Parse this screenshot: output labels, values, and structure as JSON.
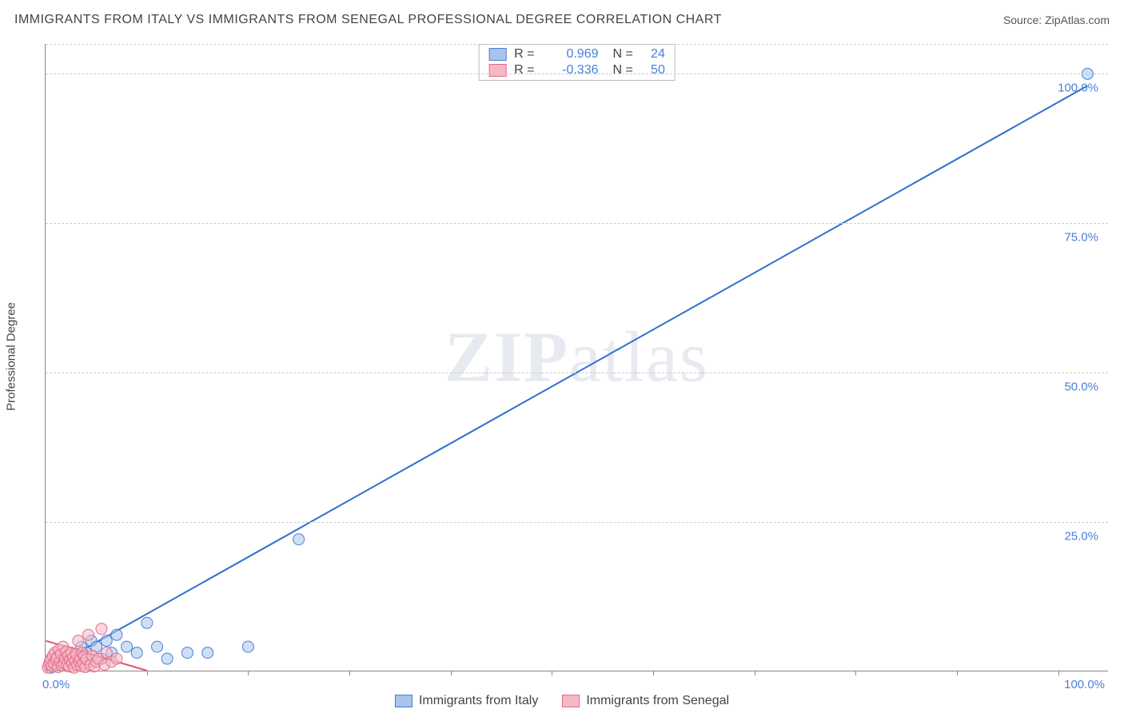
{
  "title": "IMMIGRANTS FROM ITALY VS IMMIGRANTS FROM SENEGAL PROFESSIONAL DEGREE CORRELATION CHART",
  "source": "Source: ZipAtlas.com",
  "ylabel": "Professional Degree",
  "watermark": "ZIPatlas",
  "chart": {
    "type": "scatter",
    "xlim": [
      0,
      105
    ],
    "ylim": [
      0,
      105
    ],
    "x_tick_labels": {
      "min": "0.0%",
      "max": "100.0%"
    },
    "y_tick_labels": [
      "25.0%",
      "50.0%",
      "75.0%",
      "100.0%"
    ],
    "y_tick_values": [
      25,
      50,
      75,
      100
    ],
    "x_minor_ticks": [
      10,
      20,
      30,
      40,
      50,
      60,
      70,
      80,
      90,
      100
    ],
    "background_color": "#ffffff",
    "grid_color": "#cccccc",
    "axis_color": "#888888",
    "label_color": "#4a7fd8",
    "marker_radius": 7,
    "marker_opacity": 0.55,
    "line_width": 2,
    "series": [
      {
        "name": "Immigrants from Italy",
        "color_fill": "#a8c4ea",
        "color_stroke": "#4a7fd8",
        "trend_color": "#2f6fd0",
        "r": "0.969",
        "n": "24",
        "trend": {
          "x1": 0,
          "y1": 0,
          "x2": 103,
          "y2": 98
        },
        "points": [
          [
            0.5,
            0.5
          ],
          [
            1,
            1
          ],
          [
            1.5,
            2
          ],
          [
            2,
            1.5
          ],
          [
            2.5,
            3
          ],
          [
            3,
            2.5
          ],
          [
            3.5,
            4
          ],
          [
            4,
            3
          ],
          [
            4.5,
            5
          ],
          [
            5,
            4
          ],
          [
            5.5,
            2
          ],
          [
            6,
            5
          ],
          [
            6.5,
            3
          ],
          [
            7,
            6
          ],
          [
            8,
            4
          ],
          [
            9,
            3
          ],
          [
            10,
            8
          ],
          [
            11,
            4
          ],
          [
            12,
            2
          ],
          [
            14,
            3
          ],
          [
            16,
            3
          ],
          [
            20,
            4
          ],
          [
            25,
            22
          ],
          [
            103,
            100
          ]
        ]
      },
      {
        "name": "Immigrants from Senegal",
        "color_fill": "#f4b8c4",
        "color_stroke": "#e86a8a",
        "trend_color": "#e05575",
        "r": "-0.336",
        "n": "50",
        "trend": {
          "x1": 0,
          "y1": 5,
          "x2": 10,
          "y2": 0
        },
        "points": [
          [
            0.2,
            0.5
          ],
          [
            0.3,
            1
          ],
          [
            0.4,
            1.5
          ],
          [
            0.5,
            2
          ],
          [
            0.6,
            0.8
          ],
          [
            0.7,
            2.5
          ],
          [
            0.8,
            1.2
          ],
          [
            0.9,
            3
          ],
          [
            1,
            1.8
          ],
          [
            1.1,
            2.2
          ],
          [
            1.2,
            0.6
          ],
          [
            1.3,
            3.5
          ],
          [
            1.4,
            1.5
          ],
          [
            1.5,
            2.8
          ],
          [
            1.6,
            0.9
          ],
          [
            1.7,
            4
          ],
          [
            1.8,
            1.2
          ],
          [
            1.9,
            2
          ],
          [
            2,
            3.2
          ],
          [
            2.1,
            1
          ],
          [
            2.2,
            2.5
          ],
          [
            2.3,
            0.7
          ],
          [
            2.4,
            1.8
          ],
          [
            2.5,
            3
          ],
          [
            2.6,
            1.3
          ],
          [
            2.7,
            2.2
          ],
          [
            2.8,
            0.5
          ],
          [
            2.9,
            1.6
          ],
          [
            3,
            2.8
          ],
          [
            3.1,
            1
          ],
          [
            3.2,
            5
          ],
          [
            3.3,
            1.5
          ],
          [
            3.4,
            2
          ],
          [
            3.5,
            0.8
          ],
          [
            3.6,
            3
          ],
          [
            3.7,
            1.2
          ],
          [
            3.8,
            2.4
          ],
          [
            3.9,
            0.6
          ],
          [
            4,
            1.9
          ],
          [
            4.2,
            6
          ],
          [
            4.4,
            1
          ],
          [
            4.6,
            2.5
          ],
          [
            4.8,
            0.7
          ],
          [
            5,
            1.5
          ],
          [
            5.2,
            2
          ],
          [
            5.5,
            7
          ],
          [
            5.8,
            1
          ],
          [
            6,
            3
          ],
          [
            6.5,
            1.5
          ],
          [
            7,
            2
          ]
        ]
      }
    ]
  },
  "legend_bottom": [
    {
      "label": "Immigrants from Italy",
      "fill": "#a8c4ea",
      "stroke": "#4a7fd8"
    },
    {
      "label": "Immigrants from Senegal",
      "fill": "#f4b8c4",
      "stroke": "#e86a8a"
    }
  ]
}
